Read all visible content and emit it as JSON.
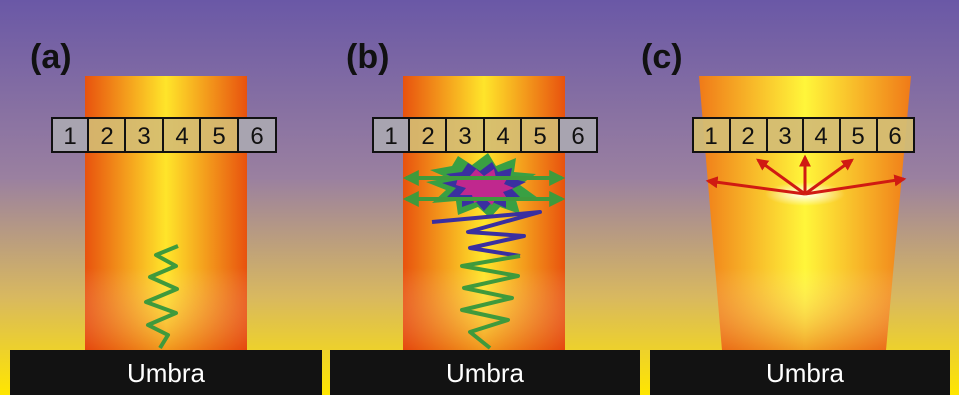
{
  "panels": [
    {
      "letter": "(a)",
      "cells": [
        "1",
        "2",
        "3",
        "4",
        "5",
        "6"
      ],
      "footer": "Umbra"
    },
    {
      "letter": "(b)",
      "cells": [
        "1",
        "2",
        "3",
        "4",
        "5",
        "6"
      ],
      "footer": "Umbra"
    },
    {
      "letter": "(c)",
      "cells": [
        "1",
        "2",
        "3",
        "4",
        "5",
        "6"
      ],
      "footer": "Umbra"
    }
  ],
  "colors": {
    "sky_top": "#6a58a6",
    "sky_bottom": "#ffe600",
    "umbra_bar": "#121212",
    "column_center": "#fff12a",
    "column_edge": "#e8520e",
    "wave_green": "#3f9a3c",
    "wave_blue": "#3a2fa0",
    "arrow_green": "#3f9a3c",
    "arrow_red": "#d01a12",
    "burst_magenta": "#c0288e",
    "burst_green": "#39a043",
    "burst_blue": "#3a2fa0"
  }
}
